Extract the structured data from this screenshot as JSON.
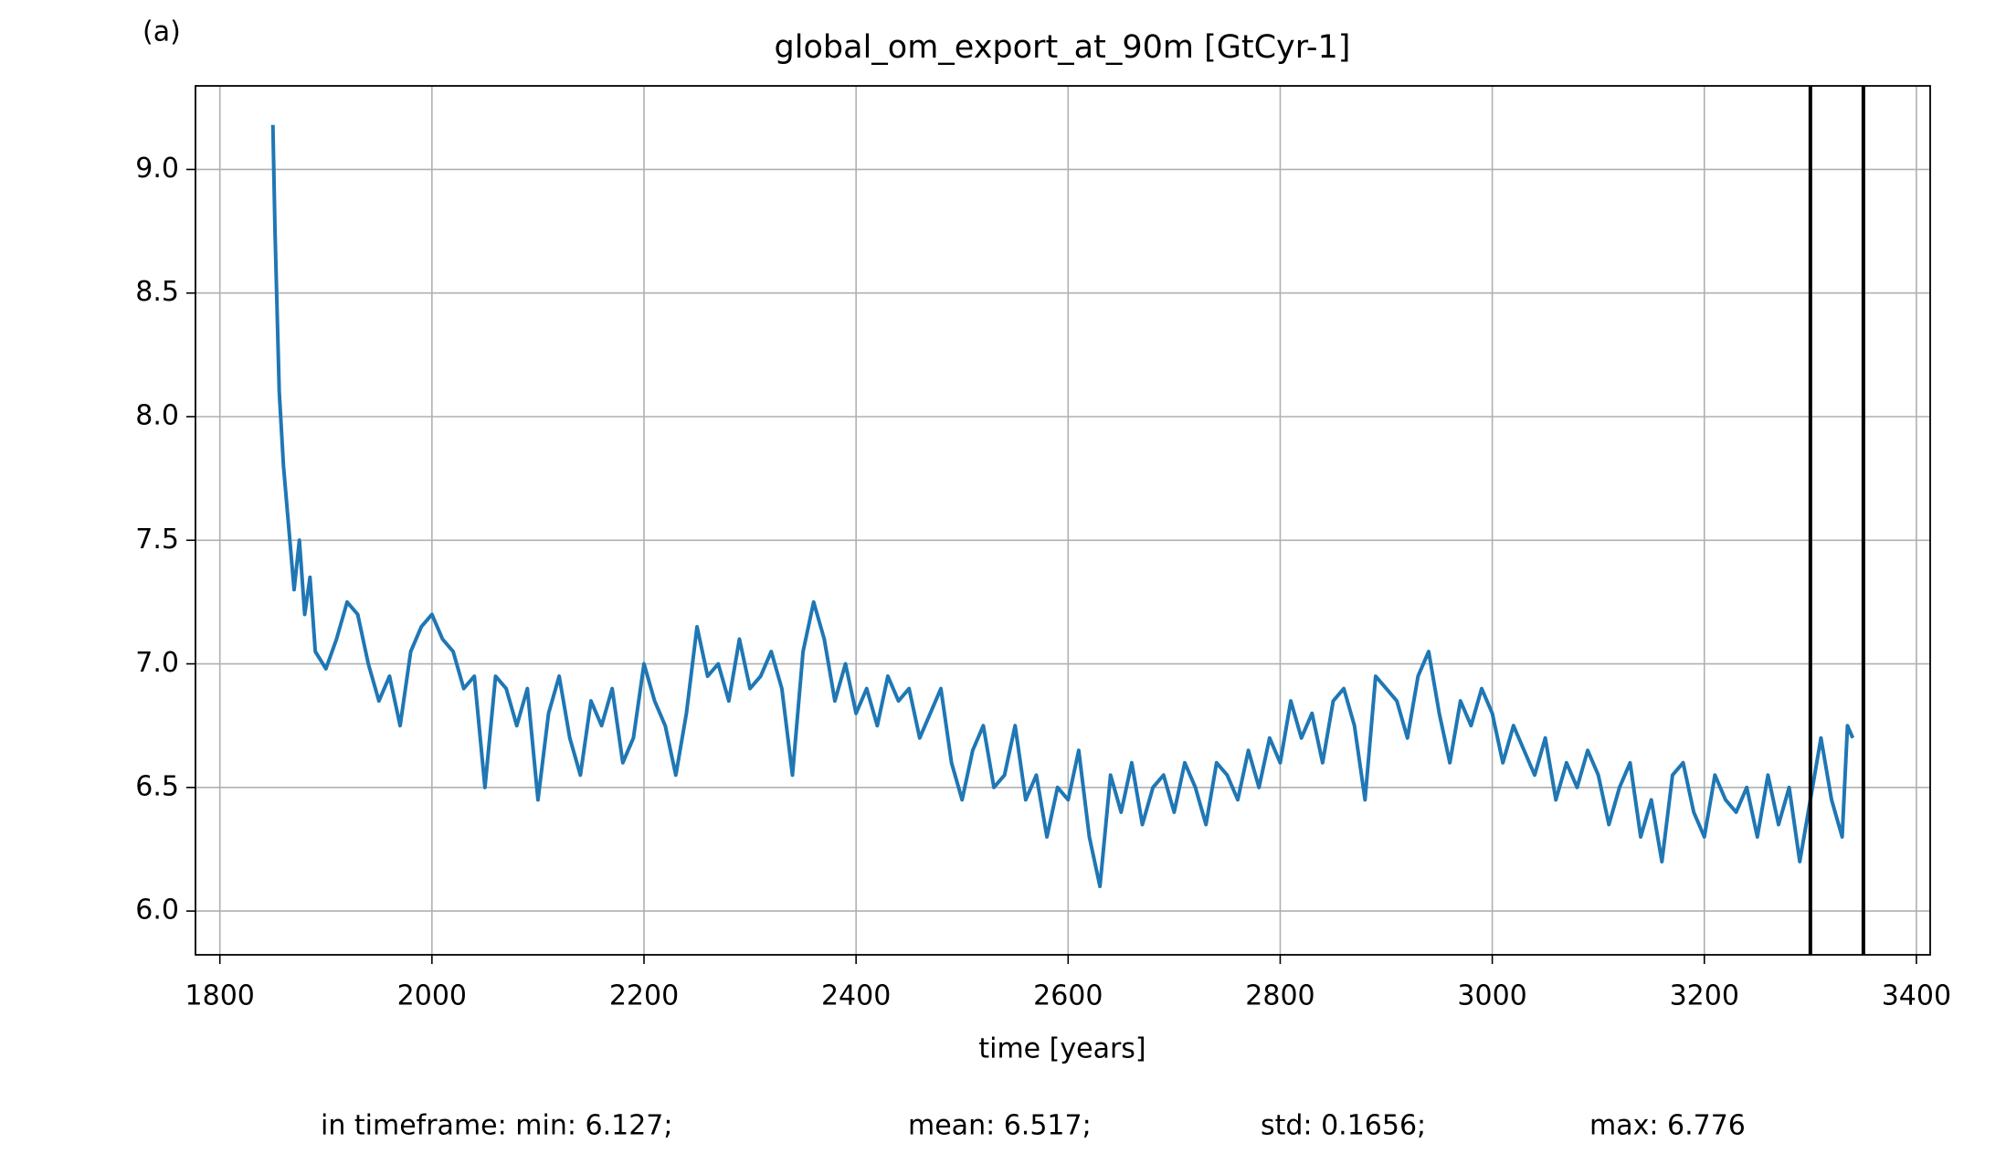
{
  "chart_data": {
    "type": "line",
    "panel_label": "(a)",
    "title": "global_om_export_at_90m [GtCyr-1]",
    "x_label": "time [years]",
    "stats": [
      "in timeframe: min: 6.127;",
      "mean: 6.517;",
      "std: 0.1656;",
      "max: 6.776"
    ],
    "xlim": [
      1777,
      3413
    ],
    "ylim": [
      5.823,
      9.338
    ],
    "xticks": [
      1800,
      2000,
      2200,
      2400,
      2600,
      2800,
      3000,
      3200,
      3400
    ],
    "yticks": [
      {
        "value": 6,
        "label": "6.0"
      },
      6.5,
      {
        "value": 7,
        "label": "7.0"
      },
      7.5,
      {
        "value": 8,
        "label": "8.0"
      },
      8.5,
      {
        "value": 9,
        "label": "9.0"
      }
    ],
    "grid": true,
    "vlines": [
      3300,
      3350
    ],
    "vline_color": "#000000",
    "x": [
      1850,
      1852,
      1856,
      1860,
      1865,
      1870,
      1875,
      1880,
      1885,
      1890,
      1900,
      1910,
      1920,
      1930,
      1940,
      1950,
      1960,
      1970,
      1980,
      1990,
      2000,
      2010,
      2020,
      2030,
      2040,
      2050,
      2060,
      2070,
      2080,
      2090,
      2100,
      2110,
      2120,
      2130,
      2140,
      2150,
      2160,
      2170,
      2180,
      2190,
      2200,
      2210,
      2220,
      2230,
      2240,
      2250,
      2260,
      2270,
      2280,
      2290,
      2300,
      2310,
      2320,
      2330,
      2340,
      2350,
      2360,
      2370,
      2380,
      2390,
      2400,
      2410,
      2420,
      2430,
      2440,
      2450,
      2460,
      2470,
      2480,
      2490,
      2500,
      2510,
      2520,
      2530,
      2540,
      2550,
      2560,
      2570,
      2580,
      2590,
      2600,
      2610,
      2620,
      2630,
      2640,
      2650,
      2660,
      2670,
      2680,
      2690,
      2700,
      2710,
      2720,
      2730,
      2740,
      2750,
      2760,
      2770,
      2780,
      2790,
      2800,
      2810,
      2820,
      2830,
      2840,
      2850,
      2860,
      2870,
      2880,
      2890,
      2900,
      2910,
      2920,
      2930,
      2940,
      2950,
      2960,
      2970,
      2980,
      2990,
      3000,
      3010,
      3020,
      3030,
      3040,
      3050,
      3060,
      3070,
      3080,
      3090,
      3100,
      3110,
      3120,
      3130,
      3140,
      3150,
      3160,
      3170,
      3180,
      3190,
      3200,
      3210,
      3220,
      3230,
      3240,
      3250,
      3260,
      3270,
      3280,
      3290,
      3300,
      3310,
      3320,
      3330,
      3335,
      3340
    ],
    "series": [
      {
        "color": "#1f77b4",
        "values": [
          9.18,
          8.75,
          8.1,
          7.8,
          7.55,
          7.3,
          7.5,
          7.2,
          7.35,
          7.05,
          6.98,
          7.1,
          7.25,
          7.2,
          7.0,
          6.85,
          6.95,
          6.75,
          7.05,
          7.15,
          7.2,
          7.1,
          7.05,
          6.9,
          6.95,
          6.5,
          6.95,
          6.9,
          6.75,
          6.9,
          6.45,
          6.8,
          6.95,
          6.7,
          6.55,
          6.85,
          6.75,
          6.9,
          6.6,
          6.7,
          7.0,
          6.85,
          6.75,
          6.55,
          6.8,
          7.15,
          6.95,
          7.0,
          6.85,
          7.1,
          6.9,
          6.95,
          7.05,
          6.9,
          6.55,
          7.05,
          7.25,
          7.1,
          6.85,
          7.0,
          6.8,
          6.9,
          6.75,
          6.95,
          6.85,
          6.9,
          6.7,
          6.8,
          6.9,
          6.6,
          6.45,
          6.65,
          6.75,
          6.5,
          6.55,
          6.75,
          6.45,
          6.55,
          6.3,
          6.5,
          6.45,
          6.65,
          6.3,
          6.1,
          6.55,
          6.4,
          6.6,
          6.35,
          6.5,
          6.55,
          6.4,
          6.6,
          6.5,
          6.35,
          6.6,
          6.55,
          6.45,
          6.65,
          6.5,
          6.7,
          6.6,
          6.85,
          6.7,
          6.8,
          6.6,
          6.85,
          6.9,
          6.75,
          6.45,
          6.95,
          6.9,
          6.85,
          6.7,
          6.95,
          7.05,
          6.8,
          6.6,
          6.85,
          6.75,
          6.9,
          6.8,
          6.6,
          6.75,
          6.65,
          6.55,
          6.7,
          6.45,
          6.6,
          6.5,
          6.65,
          6.55,
          6.35,
          6.5,
          6.6,
          6.3,
          6.45,
          6.2,
          6.55,
          6.6,
          6.4,
          6.3,
          6.55,
          6.45,
          6.4,
          6.5,
          6.3,
          6.55,
          6.35,
          6.5,
          6.2,
          6.45,
          6.7,
          6.45,
          6.3,
          6.75,
          6.7
        ]
      }
    ]
  }
}
